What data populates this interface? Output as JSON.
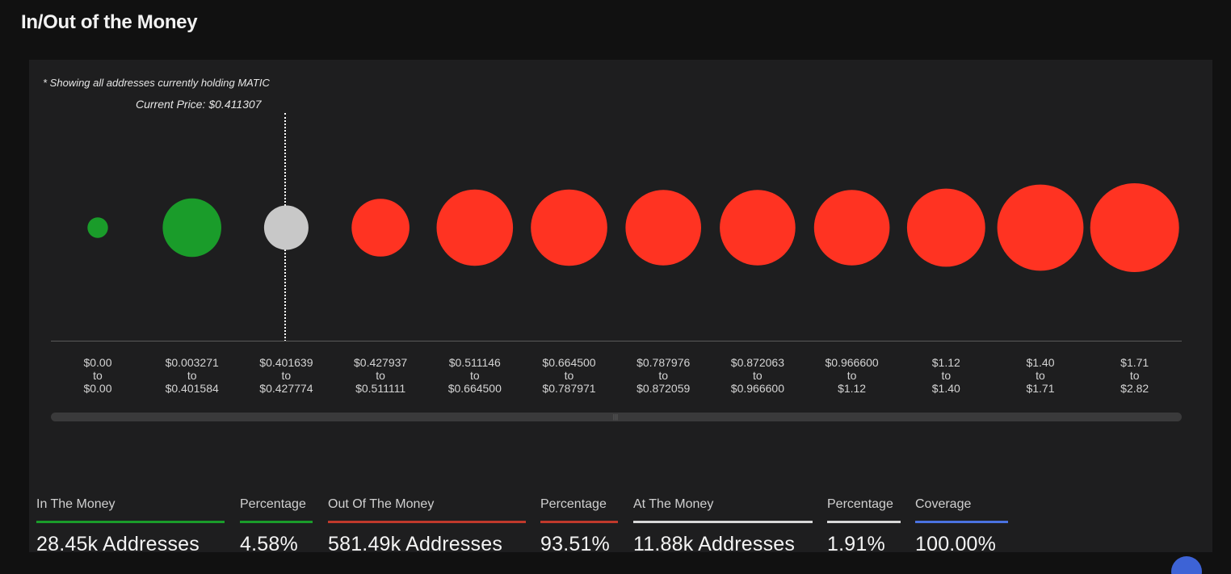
{
  "title": "In/Out of the Money",
  "note": "* Showing all addresses currently holding MATIC",
  "current_price": {
    "label": "Current Price:",
    "value": "$0.411307"
  },
  "chart_data": {
    "type": "bubble",
    "title": "In/Out of the Money",
    "x_labels": [
      [
        "$0.00",
        "to",
        "$0.00"
      ],
      [
        "$0.003271",
        "to",
        "$0.401584"
      ],
      [
        "$0.401639",
        "to",
        "$0.427774"
      ],
      [
        "$0.427937",
        "to",
        "$0.511111"
      ],
      [
        "$0.511146",
        "to",
        "$0.664500"
      ],
      [
        "$0.664500",
        "to",
        "$0.787971"
      ],
      [
        "$0.787976",
        "to",
        "$0.872059"
      ],
      [
        "$0.872063",
        "to",
        "$0.966600"
      ],
      [
        "$0.966600",
        "to",
        "$1.12"
      ],
      [
        "$1.12",
        "to",
        "$1.40"
      ],
      [
        "$1.40",
        "to",
        "$1.71"
      ],
      [
        "$1.71",
        "to",
        "$2.82"
      ]
    ],
    "status": [
      "in",
      "in",
      "at",
      "out",
      "out",
      "out",
      "out",
      "out",
      "out",
      "out",
      "out",
      "out"
    ],
    "relative_size": [
      0.23,
      0.66,
      0.5,
      0.65,
      0.86,
      0.86,
      0.85,
      0.85,
      0.85,
      0.88,
      0.97,
      1.0
    ],
    "colors": {
      "in": "#1a9c2a",
      "at": "#c8c8c8",
      "out": "#ff3322"
    },
    "current_price_bucket": 2
  },
  "stats": [
    {
      "label": "In The Money",
      "value": "28.45k Addresses",
      "color": "#1a9c2a"
    },
    {
      "label": "Percentage",
      "value": "4.58%",
      "color": "#1a9c2a"
    },
    {
      "label": "Out Of The Money",
      "value": "581.49k Addresses",
      "color": "#c0392b"
    },
    {
      "label": "Percentage",
      "value": "93.51%",
      "color": "#c0392b"
    },
    {
      "label": "At The Money",
      "value": "11.88k Addresses",
      "color": "#d8d8d8"
    },
    {
      "label": "Percentage",
      "value": "1.91%",
      "color": "#d8d8d8"
    },
    {
      "label": "Coverage",
      "value": "100.00%",
      "color": "#4a72e0"
    }
  ]
}
